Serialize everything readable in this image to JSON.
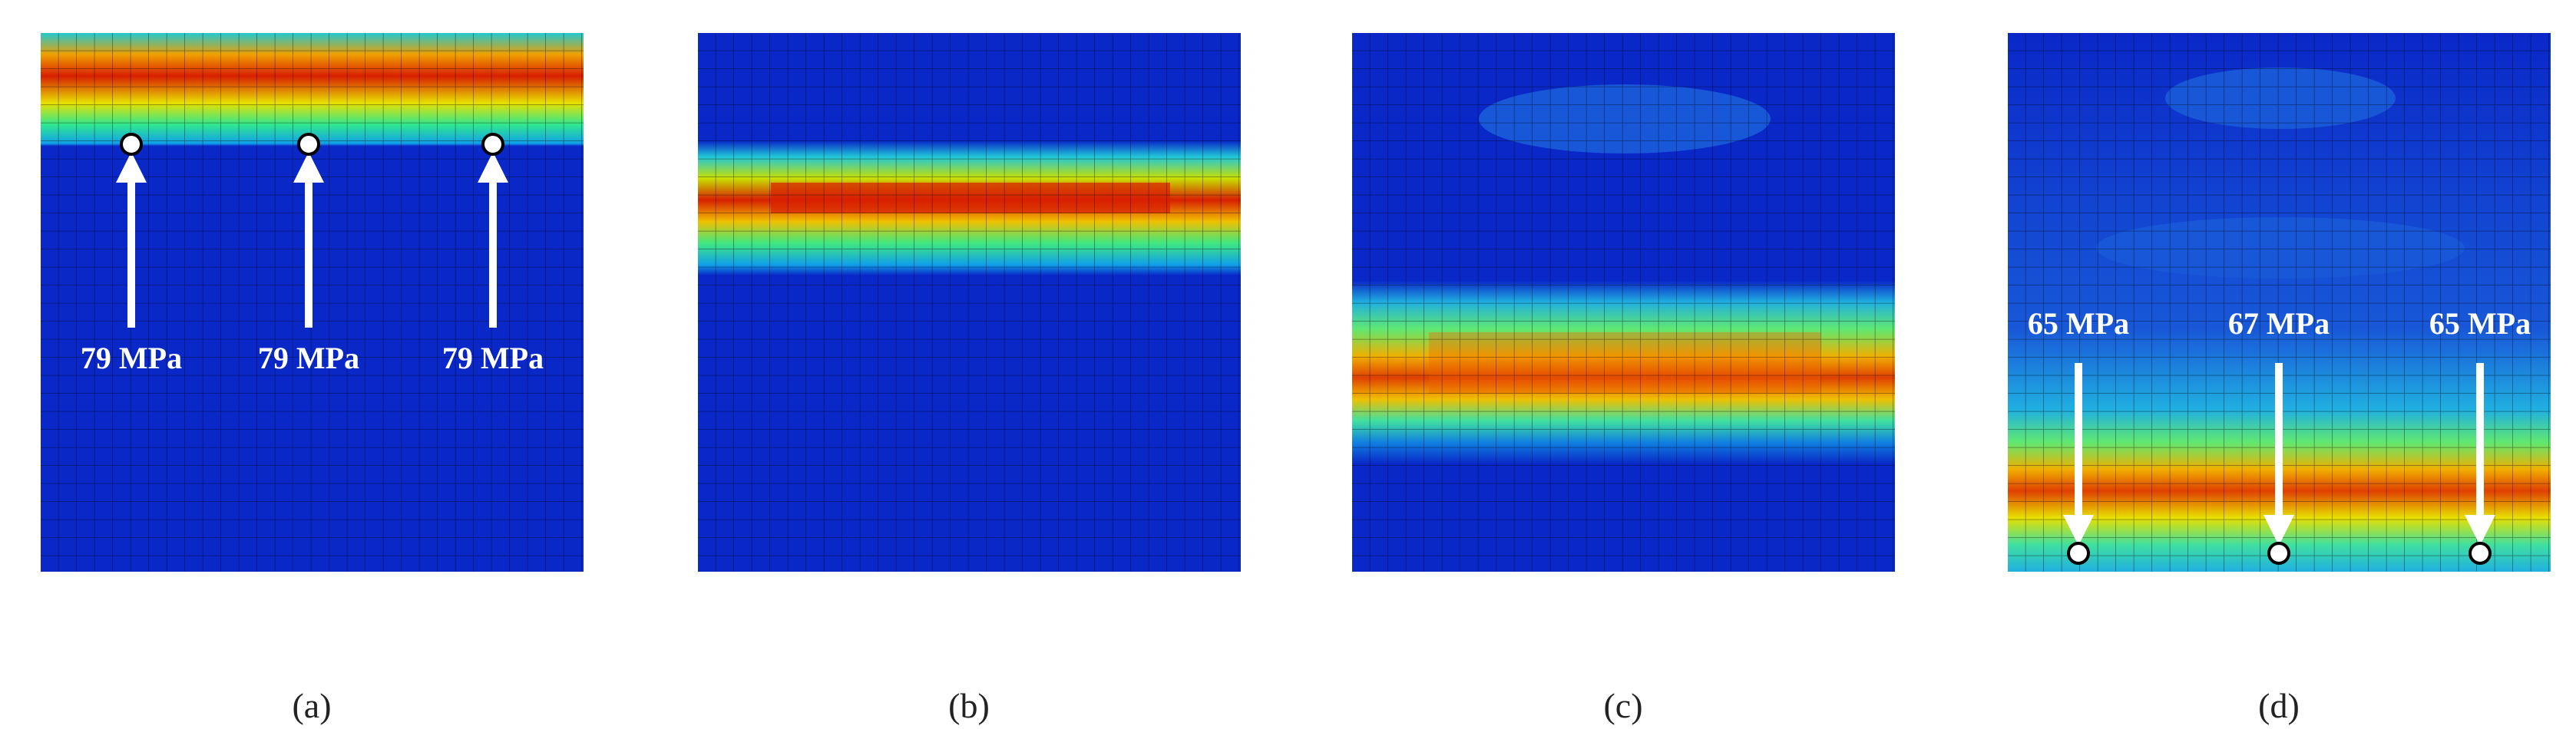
{
  "panels": [
    {
      "caption": "(a)",
      "labels": [
        "79 MPa",
        "79 MPa",
        "79 MPa"
      ]
    },
    {
      "caption": "(b)"
    },
    {
      "caption": "(c)"
    },
    {
      "caption": "(d)",
      "labels": [
        "65 MPa",
        "67 MPa",
        "65 MPa"
      ]
    }
  ]
}
